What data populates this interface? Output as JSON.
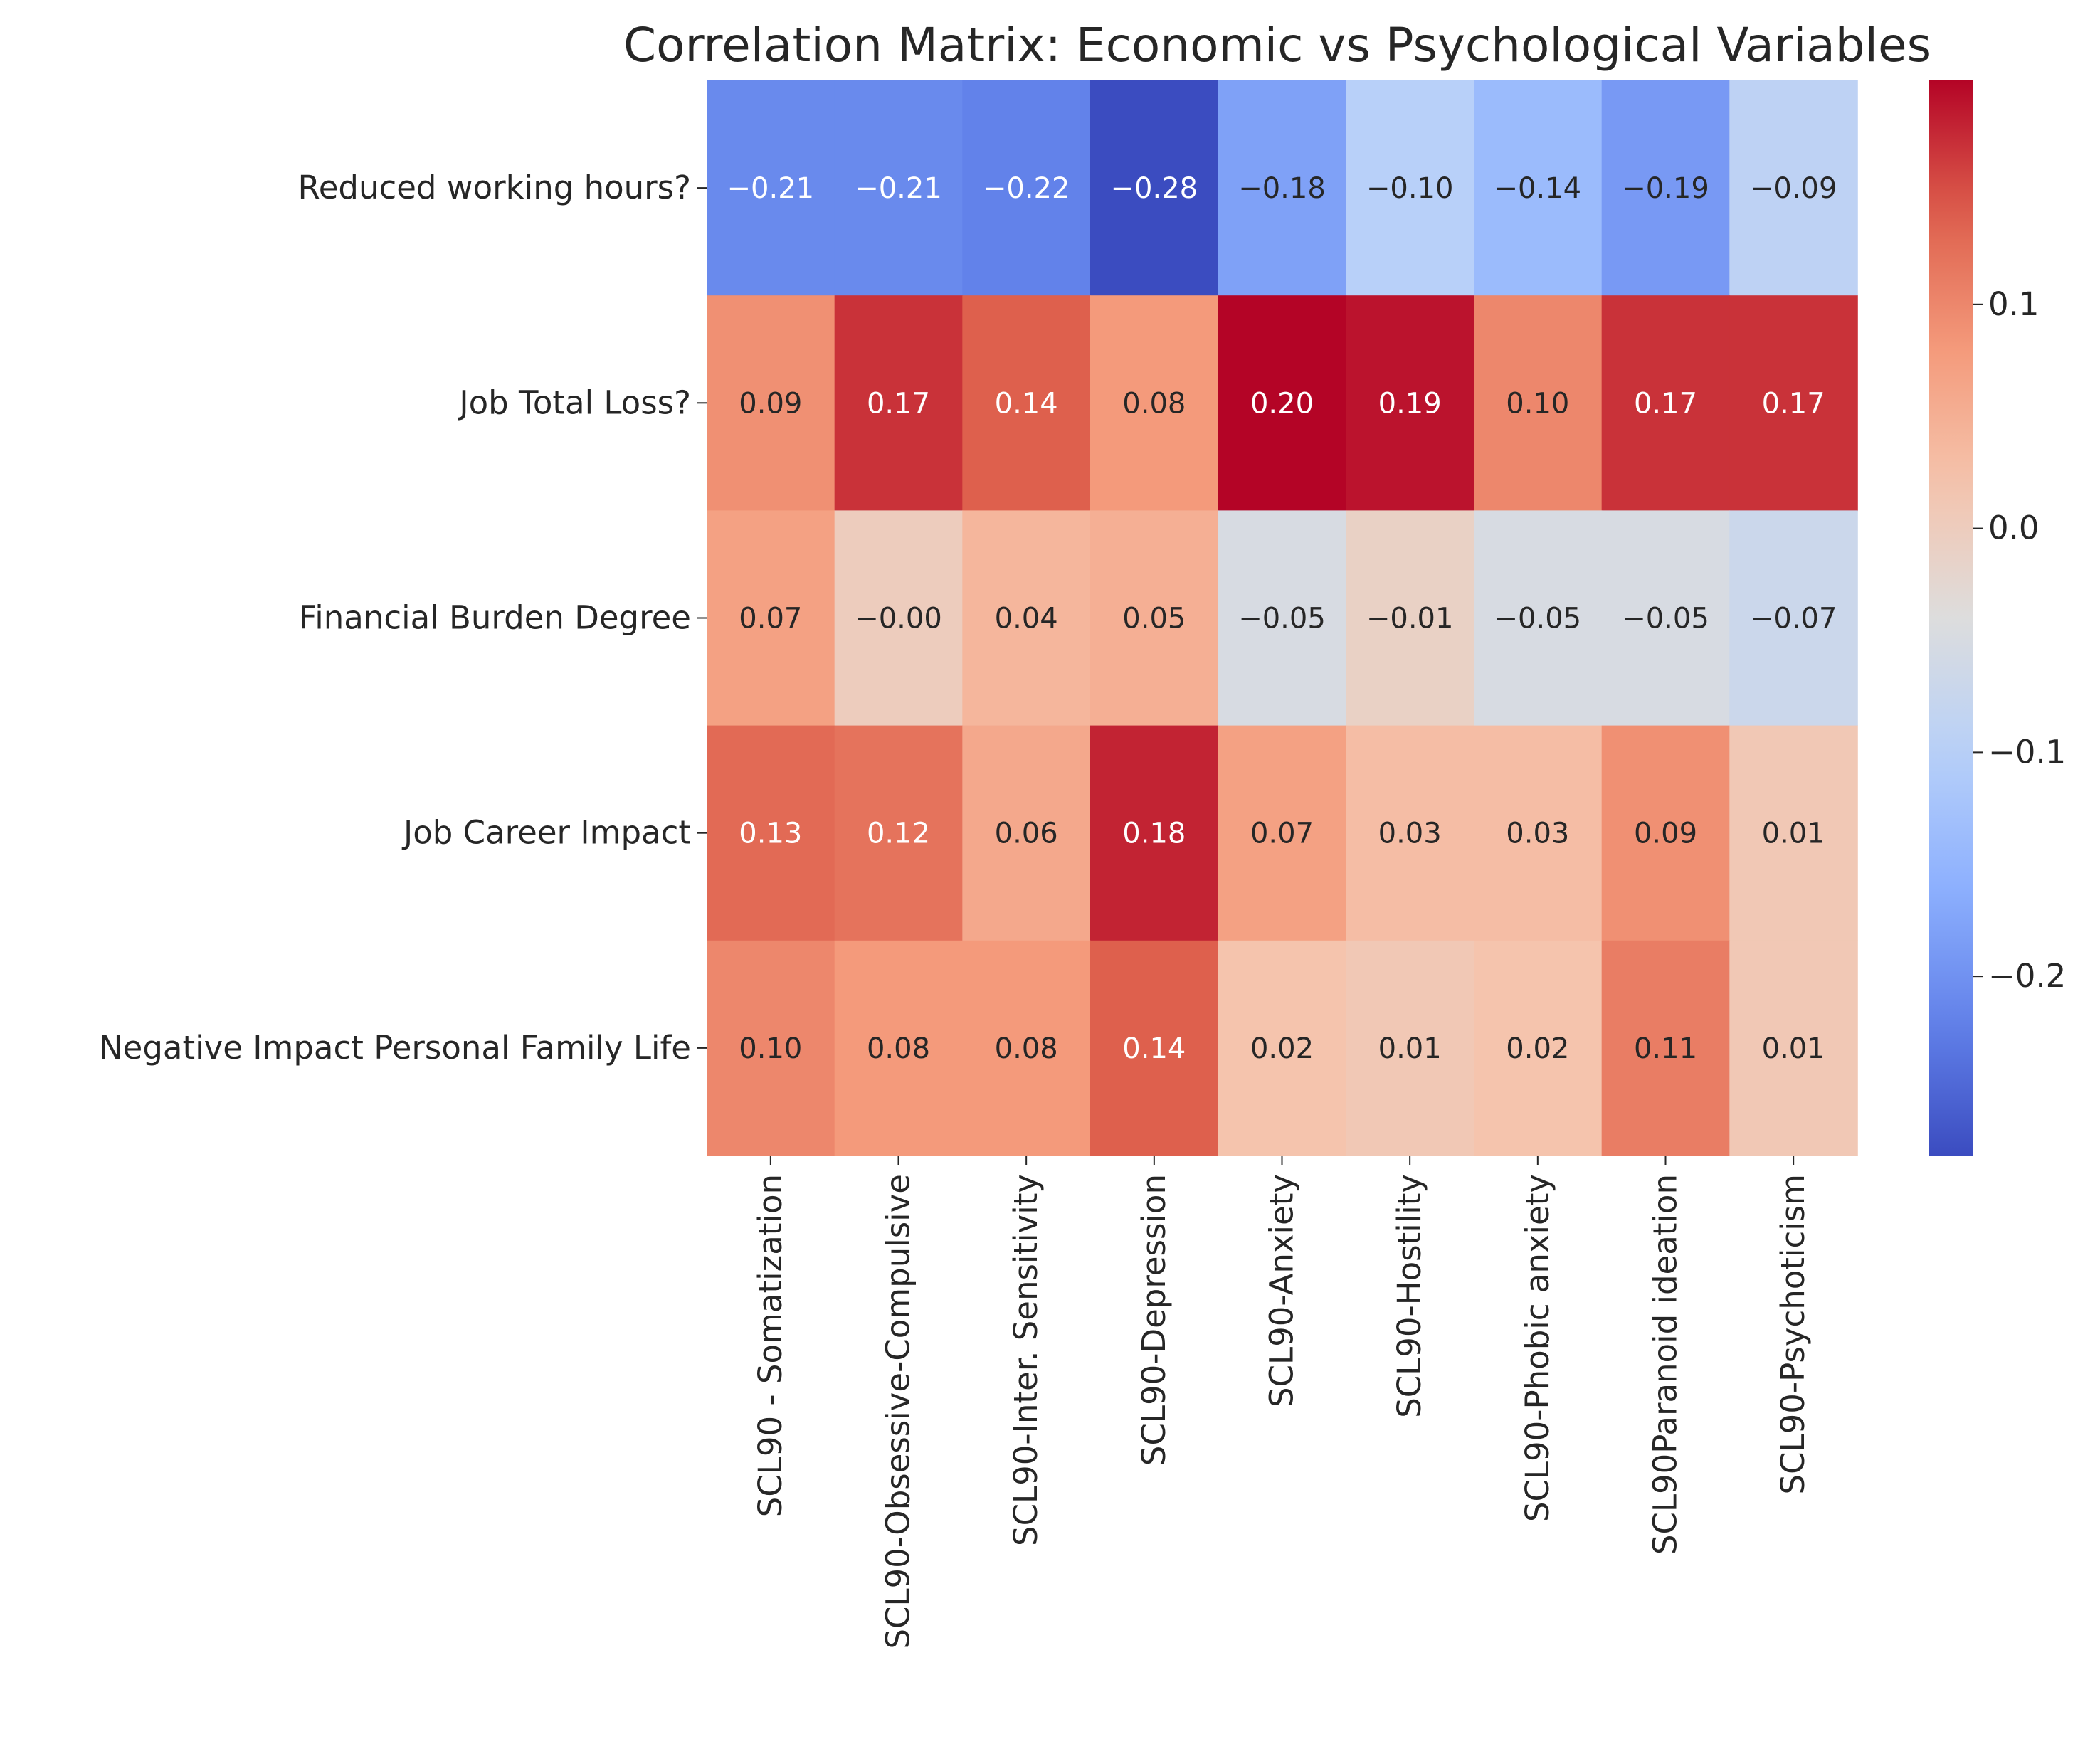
{
  "chart_data": {
    "type": "heatmap",
    "title": "Correlation Matrix: Economic vs Psychological Variables",
    "xlabel": "",
    "ylabel": "",
    "rows": [
      "Reduced working hours?",
      "Job Total Loss?",
      "Financial Burden Degree",
      "Job Career Impact",
      "Negative Impact Personal Family Life"
    ],
    "columns": [
      "SCL90 - Somatization",
      "SCL90-Obsessive-Compulsive",
      "SCL90-Inter. Sensitivity",
      "SCL90-Depression",
      "SCL90-Anxiety",
      "SCL90-Hostility",
      "SCL90-Phobic anxiety",
      "SCL90Paranoid ideation",
      "SCL90-Psychoticism"
    ],
    "values": [
      [
        -0.21,
        -0.21,
        -0.22,
        -0.28,
        -0.18,
        -0.1,
        -0.14,
        -0.19,
        -0.09
      ],
      [
        0.09,
        0.17,
        0.14,
        0.08,
        0.2,
        0.19,
        0.1,
        0.17,
        0.17
      ],
      [
        0.07,
        -0.0,
        0.04,
        0.05,
        -0.05,
        -0.01,
        -0.05,
        -0.05,
        -0.07
      ],
      [
        0.13,
        0.12,
        0.06,
        0.18,
        0.07,
        0.03,
        0.03,
        0.09,
        0.01
      ],
      [
        0.1,
        0.08,
        0.08,
        0.14,
        0.02,
        0.01,
        0.02,
        0.11,
        0.01
      ]
    ],
    "colormap": "coolwarm",
    "vmin": -0.28,
    "vmax": 0.2,
    "colorbar": {
      "ticks": [
        0.1,
        0.0,
        -0.1,
        -0.2
      ],
      "tick_labels": [
        "0.1",
        "0.0",
        "−0.1",
        "−0.2"
      ]
    },
    "annotations": true,
    "grid": false,
    "legend": "colorbar-right"
  }
}
